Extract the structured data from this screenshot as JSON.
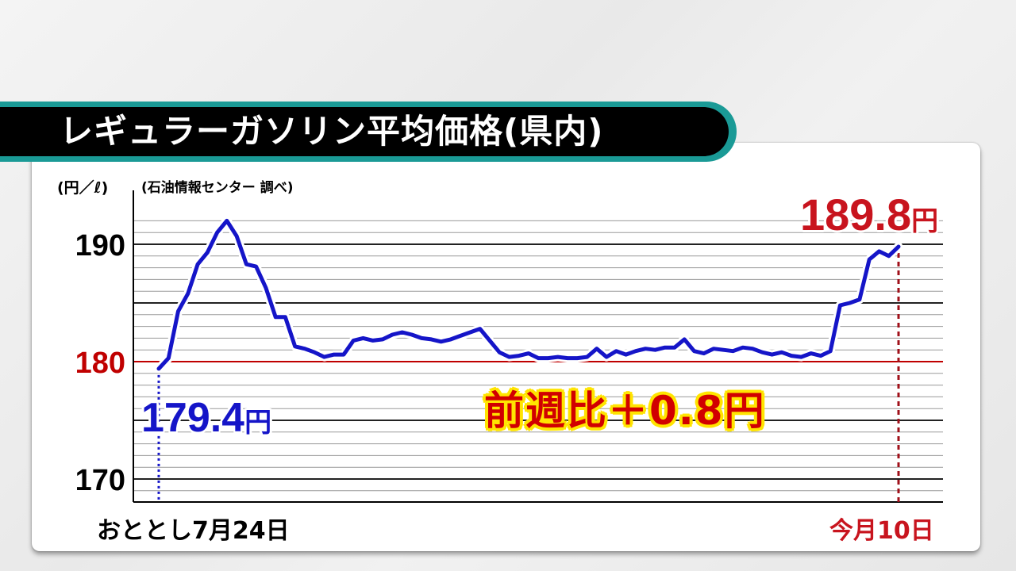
{
  "title": "レギュラーガソリン平均価格(県内)",
  "unit_label": "(円／ℓ)",
  "source_label": "(石油情報センター 調べ)",
  "start_value_text": "179.4",
  "end_value_text": "189.8",
  "unit_yen": "円",
  "change_text": "前週比＋0.8円",
  "x_start_label": "おととし7月24日",
  "x_end_label": "今月10日",
  "colors": {
    "line": "#1515c8",
    "reference": "#c00000",
    "start_marker": "#1515c8",
    "end_marker": "#a0101a",
    "title_accent": "#1a9a96"
  },
  "chart_data": {
    "type": "line",
    "title": "レギュラーガソリン平均価格(県内)",
    "ylabel": "(円／ℓ)",
    "xlabel": "",
    "ylim": [
      168,
      193
    ],
    "yticks": [
      170,
      180,
      190
    ],
    "reference_line": 180,
    "grid": true,
    "series": [
      {
        "values": [
          179.4,
          180.3,
          184.3,
          185.8,
          188.3,
          189.3,
          191.0,
          192.0,
          190.7,
          188.3,
          188.1,
          186.3,
          183.8,
          183.8,
          181.3,
          181.1,
          180.8,
          180.4,
          180.6,
          180.6,
          181.8,
          182.0,
          181.8,
          181.9,
          182.3,
          182.5,
          182.3,
          182.0,
          181.9,
          181.7,
          181.9,
          182.2,
          182.5,
          182.8,
          181.8,
          180.8,
          180.4,
          180.5,
          180.7,
          180.3,
          180.3,
          180.4,
          180.3,
          180.3,
          180.4,
          181.1,
          180.4,
          180.9,
          180.6,
          180.9,
          181.1,
          181.0,
          181.2,
          181.2,
          181.9,
          180.9,
          180.7,
          181.1,
          181.0,
          180.9,
          181.2,
          181.1,
          180.8,
          180.6,
          180.8,
          180.5,
          180.4,
          180.7,
          180.5,
          180.9,
          184.8,
          185.0,
          185.3,
          188.7,
          189.4,
          189.0,
          189.8
        ]
      }
    ]
  }
}
